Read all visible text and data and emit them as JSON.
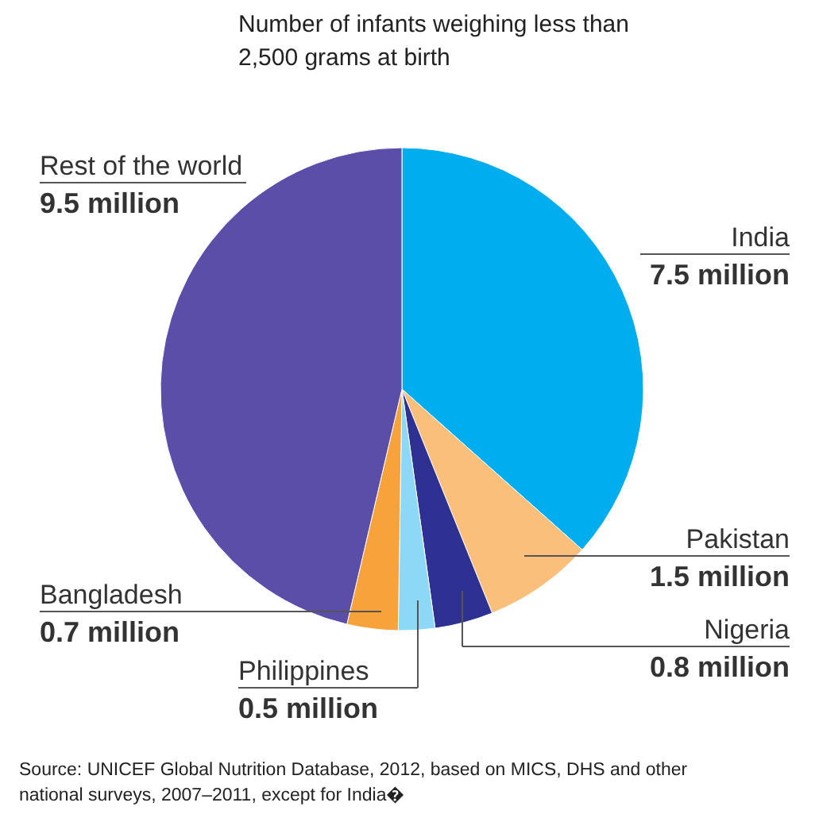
{
  "chart_data": {
    "type": "pie",
    "title": "Number of infants weighing less than 2,500 grams at birth",
    "categories": [
      "India",
      "Pakistan",
      "Nigeria",
      "Philippines",
      "Bangladesh",
      "Rest of the world"
    ],
    "values": [
      7.5,
      1.5,
      0.8,
      0.5,
      0.7,
      9.5
    ],
    "colors": [
      "#00aeef",
      "#fbbf7c",
      "#2e3192",
      "#8dd7f7",
      "#f7a23b",
      "#5b4ea8"
    ],
    "value_labels": [
      "7.5 million",
      "1.5 million",
      "0.8 million",
      "0.5 million",
      "0.7 million",
      "9.5 million"
    ],
    "annotations": [
      "Source: UNICEF Global Nutrition Database, 2012, based on MICS, DHS and other national surveys, 2007–2011, except for India�"
    ]
  }
}
